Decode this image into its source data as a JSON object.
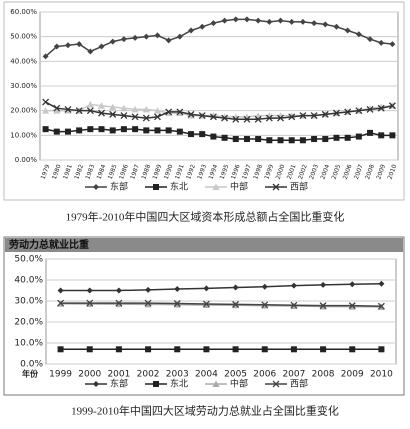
{
  "chart_data": [
    {
      "type": "line",
      "title": "1979年-2010年中国四大区域资本形成总额占全国比重变化",
      "categories": [
        "1979",
        "1980",
        "1981",
        "1982",
        "1983",
        "1984",
        "1985",
        "1986",
        "1987",
        "1988",
        "1989",
        "1990",
        "1991",
        "1992",
        "1993",
        "1994",
        "1995",
        "1996",
        "1997",
        "1998",
        "1999",
        "2000",
        "2001",
        "2002",
        "2003",
        "2004",
        "2005",
        "2006",
        "2007",
        "2008",
        "2009",
        "2010"
      ],
      "series": [
        {
          "name": "东部",
          "color": "#444444",
          "marker": "diamond",
          "values": [
            42,
            46,
            46.5,
            47,
            44,
            46,
            48,
            49,
            49.5,
            50,
            50.5,
            48.5,
            50,
            52.5,
            54,
            55.5,
            56.5,
            57,
            57,
            56.5,
            56,
            56.5,
            56,
            56,
            55.5,
            55,
            54,
            52.5,
            51,
            49,
            47.5,
            47
          ]
        },
        {
          "name": "东北",
          "color": "#222222",
          "marker": "square",
          "values": [
            12.5,
            11.5,
            11.5,
            12,
            12.5,
            12.5,
            12,
            12.5,
            12.5,
            12,
            12,
            12,
            11.5,
            10.5,
            10.5,
            9.5,
            9,
            8.5,
            8.5,
            8.5,
            8,
            8,
            8,
            8,
            8.5,
            8.5,
            9,
            9,
            9.5,
            11,
            10,
            10
          ]
        },
        {
          "name": "中部",
          "color": "#c8c8c8",
          "marker": "triangle",
          "values": [
            20,
            20,
            20,
            20,
            22.5,
            22,
            21.5,
            21,
            20.5,
            20.5,
            20,
            19,
            19,
            18,
            18,
            18,
            17.5,
            17.5,
            17.5,
            18,
            18,
            18,
            18,
            18,
            18,
            18.5,
            19,
            19.5,
            20,
            21,
            21.5,
            22
          ]
        },
        {
          "name": "西部",
          "color": "#333333",
          "marker": "cross",
          "values": [
            23.5,
            21,
            20.5,
            20,
            20,
            19,
            18.5,
            18,
            17.5,
            17,
            17.5,
            19.5,
            19.5,
            18.5,
            18,
            17.5,
            17,
            16.5,
            16.5,
            16.5,
            17,
            17,
            17.5,
            18,
            18,
            18.5,
            19,
            19.5,
            20,
            20.5,
            21,
            22
          ]
        }
      ],
      "ylim": [
        0,
        60
      ],
      "yticks": [
        {
          "value": 0,
          "label": "0.00%"
        },
        {
          "value": 10,
          "label": "10.00%"
        },
        {
          "value": 20,
          "label": "20.00%"
        },
        {
          "value": 30,
          "label": "30.00%"
        },
        {
          "value": 40,
          "label": "40.00%"
        },
        {
          "value": 50,
          "label": "50.00%"
        },
        {
          "value": 60,
          "label": "60.00%"
        }
      ],
      "grid": true
    },
    {
      "type": "line",
      "header": "劳动力总就业比重",
      "title": "1999-2010年中国四大区域劳动力总就业占全国比重变化",
      "xlabel": "年份",
      "categories": [
        "1999",
        "2000",
        "2001",
        "2002",
        "2003",
        "2004",
        "2005",
        "2006",
        "2007",
        "2008",
        "2009",
        "2010"
      ],
      "series": [
        {
          "name": "东部",
          "color": "#333333",
          "marker": "diamond",
          "values": [
            35,
            35,
            35,
            35.3,
            35.7,
            36,
            36.4,
            36.8,
            37.3,
            37.7,
            38,
            38.2
          ]
        },
        {
          "name": "东北",
          "color": "#222222",
          "marker": "square",
          "values": [
            7,
            7,
            7,
            7,
            7,
            7,
            7,
            7,
            7,
            7,
            7,
            7
          ]
        },
        {
          "name": "中部",
          "color": "#aaaaaa",
          "marker": "triangle",
          "values": [
            28.7,
            28.6,
            28.5,
            28.4,
            28.3,
            28.1,
            28,
            27.8,
            27.6,
            27.4,
            27.3,
            27.2
          ]
        },
        {
          "name": "西部",
          "color": "#444444",
          "marker": "cross",
          "values": [
            29,
            29,
            29,
            29,
            28.8,
            28.6,
            28.4,
            28.2,
            28,
            27.8,
            27.8,
            27.5
          ]
        }
      ],
      "ylim": [
        0,
        50
      ],
      "yticks": [
        {
          "value": 0,
          "label": "0.0%"
        },
        {
          "value": 10,
          "label": "10.0%"
        },
        {
          "value": 20,
          "label": "20.0%"
        },
        {
          "value": 30,
          "label": "30.0%"
        },
        {
          "value": 40,
          "label": "40.0%"
        },
        {
          "value": 50,
          "label": "50.0%"
        }
      ],
      "grid": true
    }
  ]
}
